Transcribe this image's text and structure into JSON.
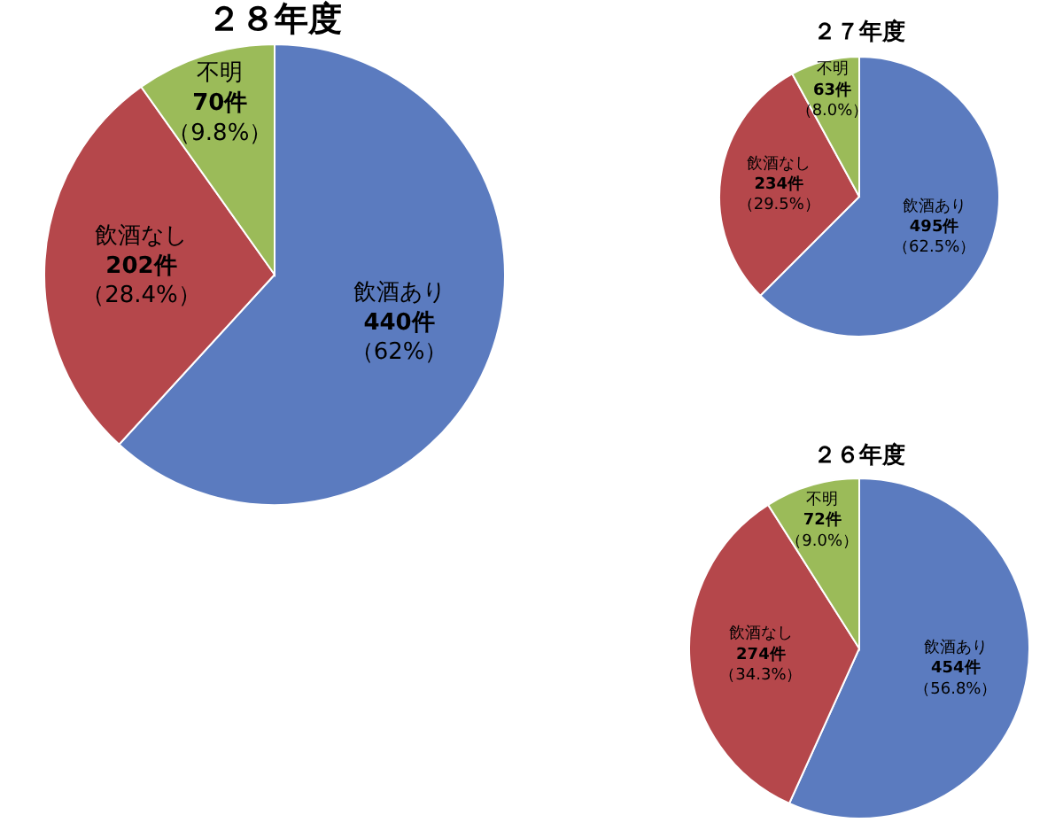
{
  "chart_data": [
    {
      "type": "pie",
      "title": "２８年度",
      "categories": [
        "飲酒あり",
        "飲酒なし",
        "不明"
      ],
      "values": [
        440,
        202,
        70
      ],
      "colors": [
        "#5b7bbf",
        "#b5474b",
        "#9bbb59"
      ],
      "value_labels": [
        "440件",
        "202件",
        "70件"
      ],
      "annotations": [
        "（62%）",
        "（28.4%）",
        "（9.8%）"
      ]
    },
    {
      "type": "pie",
      "title": "２７年度",
      "categories": [
        "飲酒あり",
        "飲酒なし",
        "不明"
      ],
      "values": [
        495,
        234,
        63
      ],
      "colors": [
        "#5b7bbf",
        "#b5474b",
        "#9bbb59"
      ],
      "value_labels": [
        "495件",
        "234件",
        "63件"
      ],
      "annotations": [
        "（62.5%）",
        "（29.5%）",
        "（8.0%）"
      ]
    },
    {
      "type": "pie",
      "title": "２６年度",
      "categories": [
        "飲酒あり",
        "飲酒なし",
        "不明"
      ],
      "values": [
        454,
        274,
        72
      ],
      "colors": [
        "#5b7bbf",
        "#b5474b",
        "#9bbb59"
      ],
      "value_labels": [
        "454件",
        "274件",
        "72件"
      ],
      "annotations": [
        "（56.8%）",
        "（34.3%）",
        "（9.0%）"
      ]
    }
  ]
}
